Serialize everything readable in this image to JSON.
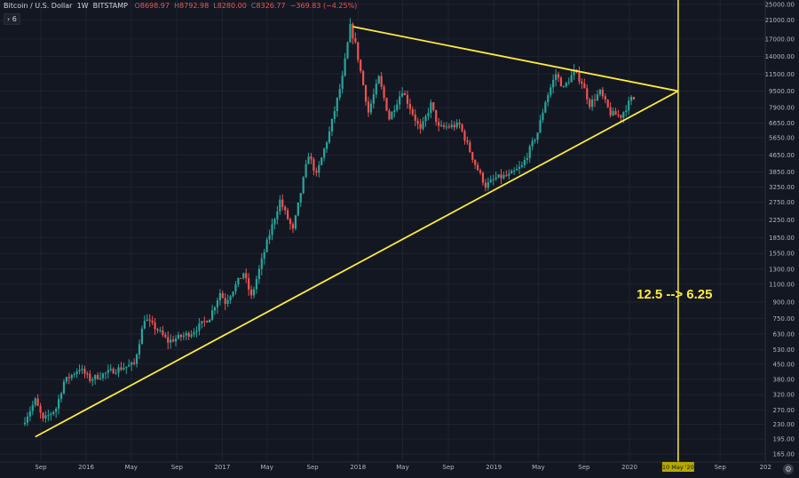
{
  "header": {
    "title": "Bitcoin / U.S. Dollar",
    "interval": "1W",
    "exchange": "BITSTAMP",
    "o_label": "O",
    "o": "8698.97",
    "h_label": "H",
    "h": "8792.98",
    "l_label": "L",
    "l": "8280.00",
    "c_label": "C",
    "c": "8326.77",
    "change": "−369.83 (−4.25%)",
    "indicator_count": "6"
  },
  "annotation": "12.5 --> 6.25",
  "halving_label": "10 May '20",
  "colors": {
    "background": "#131722",
    "up": "#26a69a",
    "down": "#ef5350",
    "drawing": "#ffeb3b"
  },
  "chart_data": {
    "type": "candlestick",
    "scale": "log",
    "y_ticks": [
      25000,
      21000,
      17000,
      14000,
      11500,
      9500,
      7900,
      6650,
      5650,
      4650,
      3850,
      3250,
      2750,
      2250,
      1850,
      1550,
      1300,
      1100,
      900,
      750,
      630,
      530,
      450,
      380,
      320,
      270,
      230,
      195,
      165
    ],
    "x_ticks": [
      "Sep",
      "2016",
      "May",
      "Sep",
      "2017",
      "May",
      "Sep",
      "2018",
      "May",
      "Sep",
      "2019",
      "May",
      "Sep",
      "2020",
      "May",
      "Sep",
      "202"
    ],
    "price_path": [
      [
        "2015-07-20",
        230
      ],
      [
        "2015-08-24",
        300
      ],
      [
        "2015-09-14",
        240
      ],
      [
        "2015-10-19",
        275
      ],
      [
        "2015-11-09",
        370
      ],
      [
        "2015-12-21",
        430
      ],
      [
        "2016-01-18",
        380
      ],
      [
        "2016-03-21",
        420
      ],
      [
        "2016-05-16",
        450
      ],
      [
        "2016-06-13",
        750
      ],
      [
        "2016-07-18",
        660
      ],
      [
        "2016-08-15",
        580
      ],
      [
        "2016-10-17",
        640
      ],
      [
        "2016-12-05",
        760
      ],
      [
        "2017-01-02",
        1000
      ],
      [
        "2017-01-16",
        900
      ],
      [
        "2017-03-06",
        1250
      ],
      [
        "2017-03-27",
        950
      ],
      [
        "2017-05-08",
        1750
      ],
      [
        "2017-06-12",
        2800
      ],
      [
        "2017-07-17",
        2000
      ],
      [
        "2017-08-28",
        4700
      ],
      [
        "2017-09-18",
        3700
      ],
      [
        "2017-10-23",
        6000
      ],
      [
        "2017-11-27",
        11000
      ],
      [
        "2017-12-18",
        19500
      ],
      [
        "2018-01-01",
        16000
      ],
      [
        "2018-02-05",
        7500
      ],
      [
        "2018-03-05",
        11000
      ],
      [
        "2018-04-02",
        7000
      ],
      [
        "2018-05-07",
        9600
      ],
      [
        "2018-06-25",
        6100
      ],
      [
        "2018-07-23",
        8200
      ],
      [
        "2018-08-13",
        6300
      ],
      [
        "2018-10-08",
        6500
      ],
      [
        "2018-11-19",
        4200
      ],
      [
        "2018-12-17",
        3300
      ],
      [
        "2019-01-14",
        3600
      ],
      [
        "2019-02-18",
        3700
      ],
      [
        "2019-03-25",
        4100
      ],
      [
        "2019-05-06",
        6000
      ],
      [
        "2019-05-27",
        8500
      ],
      [
        "2019-06-24",
        11500
      ],
      [
        "2019-07-15",
        9800
      ],
      [
        "2019-08-12",
        11800
      ],
      [
        "2019-09-02",
        10500
      ],
      [
        "2019-09-23",
        8200
      ],
      [
        "2019-10-21",
        9400
      ],
      [
        "2019-11-18",
        7400
      ],
      [
        "2019-12-16",
        7200
      ],
      [
        "2020-01-06",
        8300
      ],
      [
        "2020-01-13",
        8700
      ]
    ],
    "trendlines": [
      {
        "name": "lower",
        "from": [
          "2015-08-17",
          200
        ],
        "to": [
          "2020-05-11",
          9500
        ]
      },
      {
        "name": "upper",
        "from": [
          "2017-12-18",
          19500
        ],
        "to": [
          "2020-05-11",
          9500
        ]
      }
    ],
    "vertical_line_date": "2020-05-11"
  }
}
